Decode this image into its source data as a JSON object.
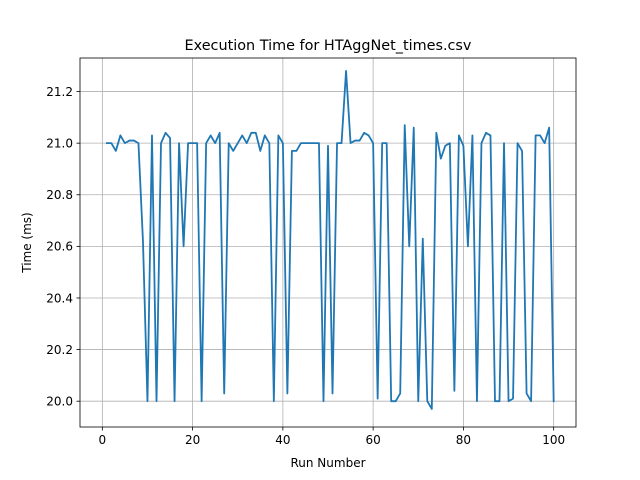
{
  "chart_data": {
    "type": "line",
    "title": "Execution Time for HTAggNet_times.csv",
    "xlabel": "Run Number",
    "ylabel": "Time (ms)",
    "xlim": [
      -4.95,
      104.95
    ],
    "ylim": [
      19.9,
      21.33
    ],
    "xticks": [
      0,
      20,
      40,
      60,
      80,
      100
    ],
    "yticks": [
      20.0,
      20.2,
      20.4,
      20.6,
      20.8,
      21.0,
      21.2
    ],
    "xtick_labels": [
      "0",
      "20",
      "40",
      "60",
      "80",
      "100"
    ],
    "ytick_labels": [
      "20.0",
      "20.2",
      "20.4",
      "20.6",
      "20.8",
      "21.0",
      "21.2"
    ],
    "grid": true,
    "series_color": "#1f77b4",
    "series": [
      {
        "x": [
          1,
          2,
          3,
          4,
          5,
          6,
          7,
          8,
          9,
          10,
          11,
          12,
          13,
          14,
          15,
          16,
          17,
          18,
          19,
          20,
          21,
          22,
          23,
          24,
          25,
          26,
          27,
          28,
          29,
          30,
          31,
          32,
          33,
          34,
          35,
          36,
          37,
          38,
          39,
          40,
          41,
          42,
          43,
          44,
          45,
          46,
          47,
          48,
          49,
          50,
          51,
          52,
          53,
          54,
          55,
          56,
          57,
          58,
          59,
          60,
          61,
          62,
          63,
          64,
          65,
          66,
          67,
          68,
          69,
          70,
          71,
          72,
          73,
          74,
          75,
          76,
          77,
          78,
          79,
          80,
          81,
          82,
          83,
          84,
          85,
          86,
          87,
          88,
          89,
          90,
          91,
          92,
          93,
          94,
          95,
          96,
          97,
          98,
          99,
          100
        ],
        "values": [
          21.0,
          21.0,
          20.97,
          21.03,
          21.0,
          21.01,
          21.01,
          21.0,
          20.62,
          20.0,
          21.03,
          20.0,
          21.0,
          21.04,
          21.02,
          20.0,
          21.0,
          20.6,
          21.0,
          21.0,
          21.0,
          20.0,
          21.0,
          21.03,
          21.0,
          21.04,
          20.03,
          21.0,
          20.97,
          21.0,
          21.03,
          21.0,
          21.04,
          21.04,
          20.97,
          21.03,
          21.0,
          20.0,
          21.03,
          21.0,
          20.03,
          20.97,
          20.97,
          21.0,
          21.0,
          21.0,
          21.0,
          21.0,
          20.0,
          20.99,
          20.03,
          21.0,
          21.0,
          21.28,
          21.0,
          21.01,
          21.01,
          21.04,
          21.03,
          21.0,
          20.01,
          21.0,
          21.0,
          20.0,
          20.0,
          20.03,
          21.07,
          20.6,
          21.06,
          20.0,
          20.63,
          20.0,
          19.97,
          21.04,
          20.94,
          20.99,
          21.0,
          20.04,
          21.03,
          20.99,
          20.6,
          21.03,
          20.0,
          21.0,
          21.04,
          21.03,
          20.0,
          20.0,
          21.0,
          20.0,
          20.01,
          21.0,
          20.97,
          20.03,
          20.0,
          21.03,
          21.03,
          21.0,
          21.06,
          20.0
        ]
      }
    ]
  }
}
